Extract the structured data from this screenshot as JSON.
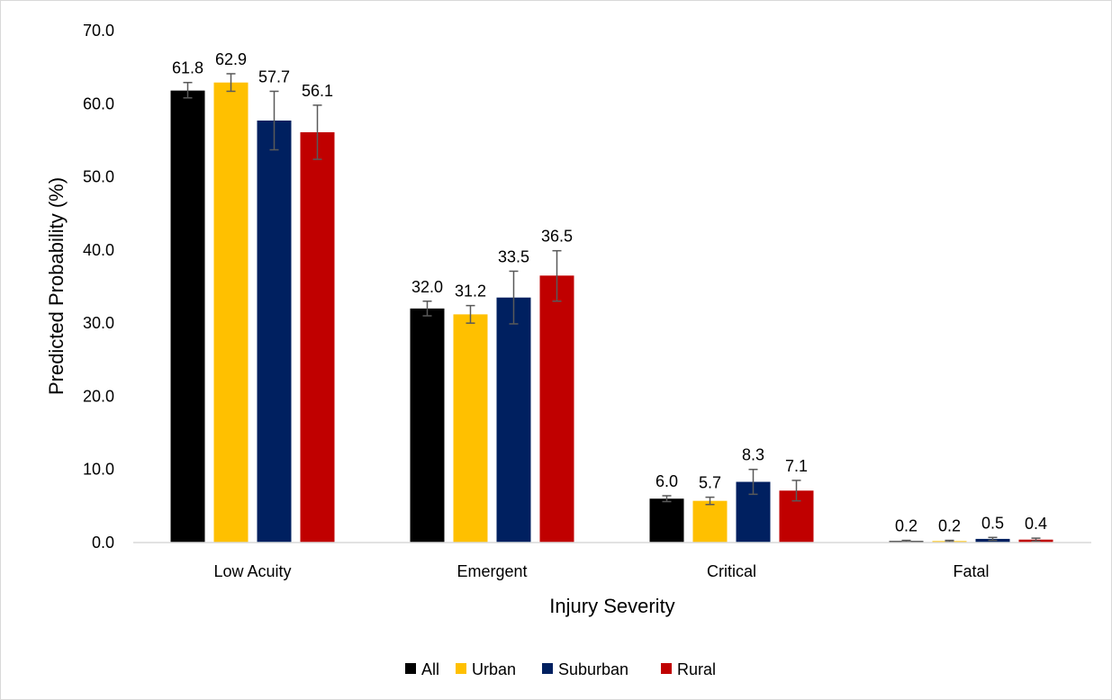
{
  "chart_data": {
    "type": "bar",
    "title": "",
    "xlabel": "Injury Severity",
    "ylabel": "Predicted Probability (%)",
    "ylim": [
      0,
      70
    ],
    "yticks": [
      "0.0",
      "10.0",
      "20.0",
      "30.0",
      "40.0",
      "50.0",
      "60.0",
      "70.0"
    ],
    "grid": false,
    "legend_position": "bottom",
    "categories": [
      "Low Acuity",
      "Emergent",
      "Critical",
      "Fatal"
    ],
    "series": [
      {
        "name": "All",
        "color": "#000000",
        "values": [
          61.8,
          32.0,
          6.0,
          0.2
        ],
        "labels": [
          "61.8",
          "32.0",
          "6.0",
          "0.2"
        ],
        "err_low": [
          60.8,
          31.0,
          5.6,
          0.1
        ],
        "err_high": [
          62.9,
          33.0,
          6.4,
          0.3
        ]
      },
      {
        "name": "Urban",
        "color": "#ffc000",
        "values": [
          62.9,
          31.2,
          5.7,
          0.2
        ],
        "labels": [
          "62.9",
          "31.2",
          "5.7",
          "0.2"
        ],
        "err_low": [
          61.7,
          30.0,
          5.2,
          0.1
        ],
        "err_high": [
          64.1,
          32.4,
          6.2,
          0.3
        ]
      },
      {
        "name": "Suburban",
        "color": "#002060",
        "values": [
          57.7,
          33.5,
          8.3,
          0.5
        ],
        "labels": [
          "57.7",
          "33.5",
          "8.3",
          "0.5"
        ],
        "err_low": [
          53.7,
          29.9,
          6.6,
          0.3
        ],
        "err_high": [
          61.7,
          37.1,
          10.0,
          0.7
        ]
      },
      {
        "name": "Rural",
        "color": "#c00000",
        "values": [
          56.1,
          36.5,
          7.1,
          0.4
        ],
        "labels": [
          "56.1",
          "36.5",
          "7.1",
          "0.4"
        ],
        "err_low": [
          52.4,
          33.0,
          5.7,
          0.2
        ],
        "err_high": [
          59.8,
          39.9,
          8.5,
          0.6
        ]
      }
    ]
  }
}
